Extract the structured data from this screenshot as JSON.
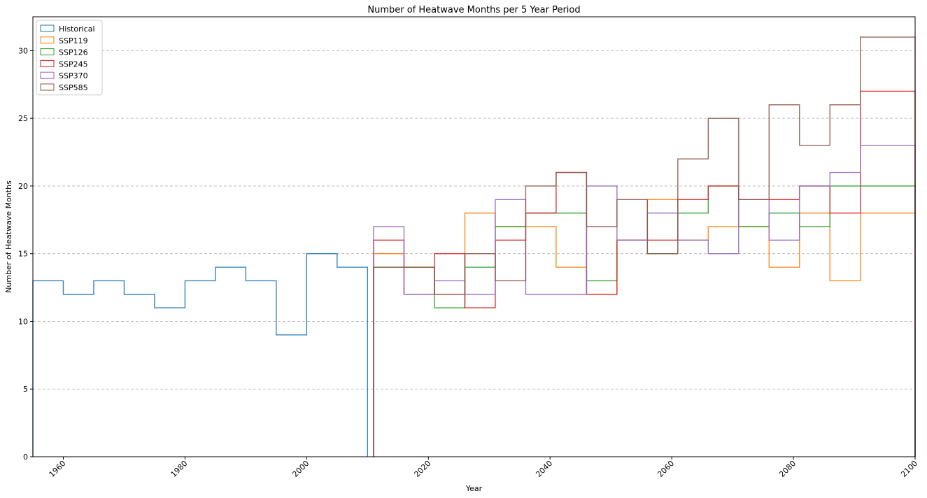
{
  "chart_data": {
    "type": "step",
    "title": "Number of Heatwave Months per 5 Year Period",
    "xlabel": "Year",
    "ylabel": "Number of Heatwave Months",
    "xlim": [
      1955,
      2100
    ],
    "ylim": [
      0,
      32.5
    ],
    "x_ticks": [
      1960,
      1980,
      2000,
      2020,
      2040,
      2060,
      2080,
      2100
    ],
    "y_ticks": [
      0,
      5,
      10,
      15,
      20,
      25,
      30
    ],
    "grid": "y-dashed",
    "legend_position": "top-left",
    "series": [
      {
        "name": "Historical",
        "color": "#1f77b4",
        "x_edges": [
          1955,
          1960,
          1965,
          1970,
          1975,
          1980,
          1985,
          1990,
          1995,
          2000,
          2005,
          2010
        ],
        "values": [
          13,
          12,
          13,
          12,
          11,
          13,
          14,
          13,
          9,
          15,
          14
        ]
      },
      {
        "name": "SSP119",
        "color": "#ff7f0e",
        "x_edges": [
          2011,
          2016,
          2021,
          2026,
          2031,
          2036,
          2041,
          2046,
          2051,
          2056,
          2061,
          2066,
          2071,
          2076,
          2081,
          2086,
          2091,
          2096,
          2100
        ],
        "values": [
          15,
          14,
          12,
          18,
          17,
          17,
          14,
          12,
          16,
          19,
          16,
          17,
          17,
          14,
          18,
          13,
          18,
          18
        ]
      },
      {
        "name": "SSP126",
        "color": "#2ca02c",
        "x_edges": [
          2011,
          2016,
          2021,
          2026,
          2031,
          2036,
          2041,
          2046,
          2051,
          2056,
          2061,
          2066,
          2071,
          2076,
          2081,
          2086,
          2091,
          2096,
          2100
        ],
        "values": [
          14,
          14,
          11,
          14,
          17,
          18,
          18,
          13,
          16,
          15,
          18,
          20,
          17,
          18,
          17,
          20,
          20,
          20
        ]
      },
      {
        "name": "SSP245",
        "color": "#d62728",
        "x_edges": [
          2011,
          2016,
          2021,
          2026,
          2031,
          2036,
          2041,
          2046,
          2051,
          2056,
          2061,
          2066,
          2071,
          2076,
          2081,
          2086,
          2091,
          2096,
          2100
        ],
        "values": [
          16,
          12,
          15,
          11,
          16,
          18,
          21,
          12,
          16,
          16,
          19,
          20,
          19,
          19,
          20,
          18,
          27,
          27
        ]
      },
      {
        "name": "SSP370",
        "color": "#9467bd",
        "x_edges": [
          2011,
          2016,
          2021,
          2026,
          2031,
          2036,
          2041,
          2046,
          2051,
          2056,
          2061,
          2066,
          2071,
          2076,
          2081,
          2086,
          2091,
          2096,
          2100
        ],
        "values": [
          17,
          12,
          13,
          12,
          19,
          12,
          12,
          20,
          16,
          18,
          16,
          15,
          19,
          16,
          20,
          21,
          23,
          23
        ]
      },
      {
        "name": "SSP585",
        "color": "#8c564b",
        "x_edges": [
          2011,
          2016,
          2021,
          2026,
          2031,
          2036,
          2041,
          2046,
          2051,
          2056,
          2061,
          2066,
          2071,
          2076,
          2081,
          2086,
          2091,
          2096,
          2100
        ],
        "values": [
          14,
          14,
          12,
          15,
          13,
          20,
          21,
          17,
          19,
          15,
          22,
          25,
          19,
          26,
          23,
          26,
          31,
          31
        ]
      }
    ]
  }
}
